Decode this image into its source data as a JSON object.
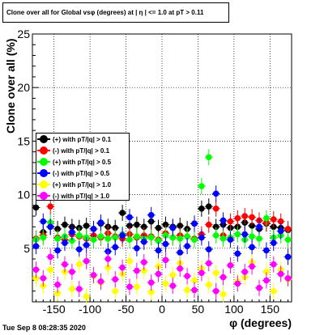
{
  "title": "Clone  over all for Global vsφ (degrees) at | η | <= 1.0 at pT > 0.11",
  "timestamp": "Tue Sep  8 08:28:35 2020",
  "chart_data": {
    "type": "scatter",
    "xlabel": "φ (degrees)",
    "ylabel": "Clone  over all (%)",
    "xlim": [
      -180,
      180
    ],
    "ylim": [
      0,
      25
    ],
    "x_ticks": [
      -150,
      -100,
      -50,
      0,
      50,
      100,
      150
    ],
    "y_ticks": [
      5,
      10,
      15,
      20,
      25
    ],
    "grid": true,
    "legend_position": "left",
    "series": [
      {
        "name": "(+) with pT/|q| > 0.1",
        "color": "#000000",
        "x": [
          -175,
          -165,
          -155,
          -145,
          -135,
          -125,
          -115,
          -105,
          -95,
          -85,
          -75,
          -65,
          -55,
          -45,
          -35,
          -25,
          -15,
          -5,
          5,
          15,
          25,
          35,
          45,
          55,
          65,
          75,
          85,
          95,
          105,
          115,
          125,
          135,
          145,
          155,
          165,
          175
        ],
        "y": [
          8.8,
          6.5,
          7.0,
          6.8,
          7.2,
          7.0,
          6.9,
          7.1,
          6.8,
          7.3,
          7.0,
          6.9,
          8.3,
          7.1,
          7.2,
          7.0,
          7.5,
          6.9,
          7.2,
          7.0,
          7.1,
          6.8,
          7.3,
          8.7,
          8.9,
          7.0,
          7.2,
          6.9,
          7.0,
          7.4,
          7.1,
          6.8,
          7.3,
          7.0,
          6.9,
          6.7
        ]
      },
      {
        "name": "(-) with pT/|q| > 0.1",
        "color": "#ff0000",
        "x": [
          -175,
          -165,
          -155,
          -145,
          -135,
          -125,
          -115,
          -105,
          -95,
          -85,
          -75,
          -65,
          -55,
          -45,
          -35,
          -25,
          -15,
          -5,
          5,
          15,
          25,
          35,
          45,
          55,
          65,
          75,
          85,
          95,
          105,
          115,
          125,
          135,
          145,
          155,
          165,
          175
        ],
        "y": [
          5.9,
          6.2,
          8.9,
          6.0,
          5.8,
          6.3,
          6.1,
          5.9,
          6.2,
          6.0,
          6.4,
          6.1,
          5.9,
          6.3,
          6.0,
          6.2,
          6.1,
          5.8,
          6.4,
          6.0,
          6.2,
          6.1,
          5.9,
          6.3,
          7.2,
          8.7,
          6.2,
          7.5,
          7.8,
          8.0,
          7.9,
          7.6,
          7.4,
          7.7,
          7.5,
          6.8
        ]
      },
      {
        "name": "(+) with pT/|q| > 0.5",
        "color": "#00ff00",
        "x": [
          -175,
          -165,
          -155,
          -145,
          -135,
          -125,
          -115,
          -105,
          -95,
          -85,
          -75,
          -65,
          -55,
          -45,
          -35,
          -25,
          -15,
          -5,
          5,
          15,
          25,
          35,
          45,
          55,
          65,
          75,
          85,
          95,
          105,
          115,
          125,
          135,
          145,
          155,
          165,
          175
        ],
        "y": [
          5.8,
          6.0,
          7.4,
          5.9,
          6.1,
          5.7,
          6.2,
          6.0,
          5.8,
          6.1,
          5.9,
          6.0,
          6.3,
          5.8,
          6.1,
          5.9,
          6.0,
          5.7,
          6.2,
          6.0,
          5.9,
          6.1,
          5.8,
          10.8,
          13.5,
          6.2,
          5.9,
          6.0,
          6.3,
          5.8,
          6.1,
          5.9,
          7.8,
          6.0,
          6.2,
          5.8
        ]
      },
      {
        "name": "(-) with pT/|q| > 0.5",
        "color": "#0000ff",
        "x": [
          -175,
          -165,
          -155,
          -145,
          -135,
          -125,
          -115,
          -105,
          -95,
          -85,
          -75,
          -65,
          -55,
          -45,
          -35,
          -25,
          -15,
          -5,
          5,
          15,
          25,
          35,
          45,
          55,
          65,
          75,
          85,
          95,
          105,
          115,
          125,
          135,
          145,
          155,
          165,
          175
        ],
        "y": [
          5.2,
          7.5,
          7.0,
          4.8,
          5.5,
          6.5,
          4.9,
          5.3,
          6.8,
          7.4,
          4.7,
          5.1,
          6.2,
          7.9,
          5.0,
          5.6,
          8.1,
          4.8,
          5.4,
          6.9,
          4.6,
          5.2,
          7.3,
          6.0,
          4.9,
          10.1,
          7.6,
          5.8,
          4.5,
          6.3,
          5.1,
          7.0,
          4.8,
          5.5,
          6.6,
          4.2
        ]
      },
      {
        "name": "(+) with pT/|q| > 1.0",
        "color": "#ffff00",
        "x": [
          -175,
          -165,
          -155,
          -145,
          -135,
          -125,
          -115,
          -105,
          -95,
          -85,
          -75,
          -65,
          -55,
          -45,
          -35,
          -25,
          -15,
          -5,
          5,
          15,
          25,
          35,
          45,
          55,
          65,
          75,
          85,
          95,
          105,
          115,
          125,
          135,
          145,
          155,
          165,
          175
        ],
        "y": [
          2.2,
          1.5,
          3.0,
          0.8,
          2.8,
          1.2,
          3.5,
          0.5,
          2.4,
          1.8,
          3.2,
          1.0,
          2.6,
          3.8,
          1.4,
          2.9,
          0.9,
          3.3,
          1.7,
          2.5,
          3.6,
          1.1,
          2.0,
          3.1,
          1.6,
          2.7,
          0.7,
          3.4,
          1.9,
          2.3,
          3.7,
          1.3,
          2.8,
          1.0,
          3.0,
          2.1
        ]
      },
      {
        "name": "(-) with pT/|q| > 1.0",
        "color": "#ff00ff",
        "x": [
          -175,
          -165,
          -155,
          -145,
          -135,
          -125,
          -115,
          -105,
          -95,
          -85,
          -75,
          -65,
          -55,
          -45,
          -35,
          -25,
          -15,
          -5,
          5,
          15,
          25,
          35,
          45,
          55,
          65,
          75,
          85,
          95,
          105,
          115,
          125,
          135,
          145,
          155,
          165,
          175
        ],
        "y": [
          3.0,
          2.2,
          4.2,
          1.6,
          3.5,
          2.8,
          1.2,
          3.8,
          2.5,
          1.9,
          4.0,
          2.1,
          3.2,
          1.4,
          2.9,
          3.7,
          1.8,
          2.6,
          3.9,
          1.5,
          3.1,
          2.4,
          1.1,
          2.7,
          3.6,
          1.0,
          2.3,
          3.4,
          1.7,
          2.8,
          3.3,
          1.3,
          2.0,
          3.5,
          2.6,
          2.2
        ]
      }
    ]
  }
}
